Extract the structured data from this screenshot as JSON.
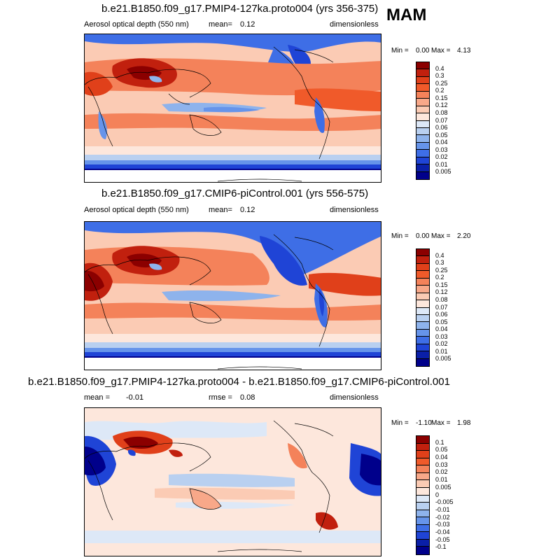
{
  "season": "MAM",
  "panels": [
    {
      "title": "b.e21.B1850.f09_g17.PMIP4-127ka.proto004 (yrs 356-375)",
      "left_label": "Aerosol optical depth (550 nm)",
      "center_label": "mean=",
      "center_value": "0.12",
      "right_label": "dimensionless",
      "min_label": "Min =",
      "min_value": "0.00",
      "max_label": "Max =",
      "max_value": "4.13",
      "levels": [
        "0.4",
        "0.3",
        "0.25",
        "0.2",
        "0.15",
        "0.12",
        "0.08",
        "0.07",
        "0.06",
        "0.05",
        "0.04",
        "0.03",
        "0.02",
        "0.01",
        "0.005"
      ],
      "colors": [
        "#8b0000",
        "#c1200e",
        "#e0401a",
        "#f05a2a",
        "#f4825a",
        "#f8a889",
        "#fbcbb4",
        "#fde7dc",
        "#dde8f7",
        "#b9d0f0",
        "#8eb3ec",
        "#6694ea",
        "#3e6ee6",
        "#1f44d6",
        "#0a1fa8",
        "#00008b"
      ]
    },
    {
      "title": "b.e21.B1850.f09_g17.CMIP6-piControl.001 (yrs 556-575)",
      "left_label": "Aerosol optical depth (550 nm)",
      "center_label": "mean=",
      "center_value": "0.12",
      "right_label": "dimensionless",
      "min_label": "Min =",
      "min_value": "0.00",
      "max_label": "Max =",
      "max_value": "2.20",
      "levels": [
        "0.4",
        "0.3",
        "0.25",
        "0.2",
        "0.15",
        "0.12",
        "0.08",
        "0.07",
        "0.06",
        "0.05",
        "0.04",
        "0.03",
        "0.02",
        "0.01",
        "0.005"
      ],
      "colors": [
        "#8b0000",
        "#c1200e",
        "#e0401a",
        "#f05a2a",
        "#f4825a",
        "#f8a889",
        "#fbcbb4",
        "#fde7dc",
        "#dde8f7",
        "#b9d0f0",
        "#8eb3ec",
        "#6694ea",
        "#3e6ee6",
        "#1f44d6",
        "#0a1fa8",
        "#00008b"
      ]
    },
    {
      "title": "b.e21.B1850.f09_g17.PMIP4-127ka.proto004 - b.e21.B1850.f09_g17.CMIP6-piControl.001",
      "left_label": "mean =",
      "left_value": "-0.01",
      "center_label": "rmse =",
      "center_value": "0.08",
      "right_label": "dimensionless",
      "min_label": "Min =",
      "min_value": "-1.10",
      "max_label": "Max =",
      "max_value": "1.98",
      "levels": [
        "0.1",
        "0.05",
        "0.04",
        "0.03",
        "0.02",
        "0.01",
        "0.005",
        "0",
        "-0.005",
        "-0.01",
        "-0.02",
        "-0.03",
        "-0.04",
        "-0.05",
        "-0.1"
      ],
      "colors": [
        "#8b0000",
        "#c1200e",
        "#e0401a",
        "#f05a2a",
        "#f4825a",
        "#f8a889",
        "#fbcbb4",
        "#fde7dc",
        "#dde8f7",
        "#b9d0f0",
        "#8eb3ec",
        "#6694ea",
        "#3e6ee6",
        "#1f44d6",
        "#0a1fa8",
        "#00008b"
      ]
    }
  ]
}
